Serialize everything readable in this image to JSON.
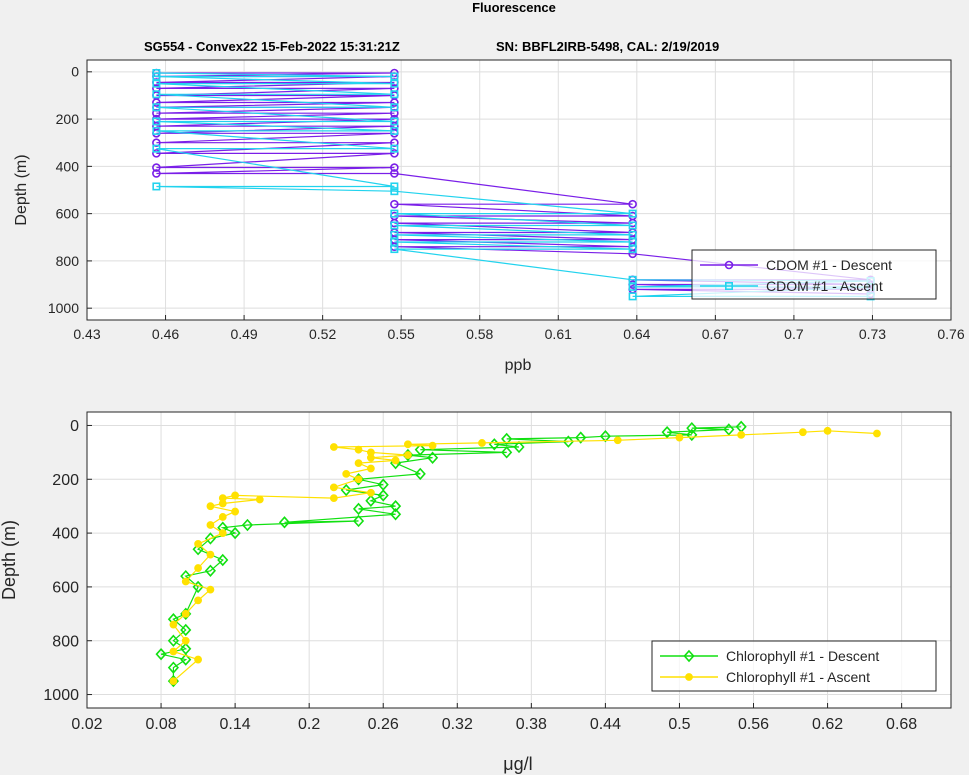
{
  "figure": {
    "title": "Fluorescence",
    "subtitle_left": "SG554 - Convex22 15-Feb-2022 15:31:21Z",
    "subtitle_right": "SN: BBFL2IRB-5498, CAL: 2/19/2019"
  },
  "colors": {
    "background": "#f0f0f0",
    "axes_bg": "#ffffff",
    "grid": "#dedede",
    "cdom_descent": "#7a1fe8",
    "cdom_ascent": "#22d3ee",
    "chl_descent": "#11e011",
    "chl_ascent": "#ffe100"
  },
  "chart_data": [
    {
      "type": "line",
      "ylabel": "Depth (m)",
      "xlabel": "ppb",
      "xlim": [
        0.43,
        0.76
      ],
      "ylim": [
        1050,
        -50
      ],
      "y_reversed": true,
      "xticks": [
        0.43,
        0.46,
        0.49,
        0.52,
        0.55,
        0.58,
        0.61,
        0.64,
        0.67,
        0.7,
        0.73,
        0.76
      ],
      "xtick_labels": [
        "0.43",
        "0.46",
        "0.49",
        "0.52",
        "0.55",
        "0.58",
        "0.61",
        "0.64",
        "0.67",
        "0.7",
        "0.73",
        "0.76"
      ],
      "yticks": [
        0,
        200,
        400,
        600,
        800,
        1000
      ],
      "ytick_labels": [
        "0",
        "200",
        "400",
        "600",
        "800",
        "1000"
      ],
      "grid": true,
      "legend_position": "bottom-right",
      "series": [
        {
          "name": "CDOM #1 - Descent",
          "marker": "circle",
          "color": "#7a1fe8",
          "x": [
            0.4565,
            0.5474,
            0.4565,
            0.5474,
            0.4565,
            0.5474,
            0.4565,
            0.5474,
            0.4565,
            0.5474,
            0.4565,
            0.5474,
            0.4565,
            0.5474,
            0.4565,
            0.5474,
            0.4565,
            0.5474,
            0.4565,
            0.5474,
            0.4565,
            0.5474,
            0.4565,
            0.5474,
            0.4565,
            0.5474,
            0.4565,
            0.5474,
            0.4565,
            0.5474,
            0.6384,
            0.5474,
            0.6384,
            0.5474,
            0.6384,
            0.5474,
            0.6384,
            0.5474,
            0.6384,
            0.5474,
            0.6384,
            0.5474,
            0.6384,
            0.7293,
            0.6384,
            0.7293,
            0.6384,
            0.7293,
            0.6384,
            0.7293
          ],
          "y": [
            5,
            5,
            20,
            20,
            45,
            45,
            70,
            70,
            100,
            100,
            130,
            130,
            150,
            150,
            175,
            175,
            200,
            200,
            230,
            230,
            260,
            260,
            300,
            300,
            345,
            345,
            405,
            405,
            430,
            430,
            560,
            560,
            610,
            610,
            640,
            640,
            680,
            680,
            710,
            710,
            740,
            740,
            770,
            880,
            880,
            900,
            900,
            920,
            920,
            940
          ]
        },
        {
          "name": "CDOM #1 - Ascent",
          "marker": "square",
          "color": "#22d3ee",
          "x": [
            0.7293,
            0.6384,
            0.7293,
            0.6384,
            0.7293,
            0.6384,
            0.5474,
            0.6384,
            0.5474,
            0.6384,
            0.5474,
            0.6384,
            0.5474,
            0.6384,
            0.5474,
            0.6384,
            0.5474,
            0.4565,
            0.5474,
            0.4565,
            0.5474,
            0.4565,
            0.5474,
            0.4565,
            0.5474,
            0.4565,
            0.5474,
            0.4565,
            0.5474,
            0.4565,
            0.5474,
            0.4565,
            0.5474,
            0.4565
          ],
          "y": [
            950,
            950,
            910,
            910,
            885,
            880,
            750,
            750,
            720,
            720,
            690,
            690,
            650,
            650,
            600,
            600,
            505,
            485,
            485,
            325,
            325,
            250,
            250,
            210,
            210,
            150,
            150,
            95,
            95,
            50,
            50,
            20,
            20,
            5
          ]
        }
      ]
    },
    {
      "type": "line",
      "ylabel": "Depth (m)",
      "xlabel": "μg/l",
      "xlim": [
        0.02,
        0.72
      ],
      "ylim": [
        1050,
        -50
      ],
      "y_reversed": true,
      "xticks": [
        0.02,
        0.08,
        0.14,
        0.2,
        0.26,
        0.32,
        0.38,
        0.44,
        0.5,
        0.56,
        0.62,
        0.68
      ],
      "xtick_labels": [
        "0.02",
        "0.08",
        "0.14",
        "0.2",
        "0.26",
        "0.32",
        "0.38",
        "0.44",
        "0.5",
        "0.56",
        "0.62",
        "0.68"
      ],
      "yticks": [
        0,
        200,
        400,
        600,
        800,
        1000
      ],
      "ytick_labels": [
        "0",
        "200",
        "400",
        "600",
        "800",
        "1000"
      ],
      "grid": true,
      "legend_position": "bottom-right",
      "series": [
        {
          "name": "Chlorophyll #1 - Descent",
          "marker": "diamond",
          "color": "#11e011",
          "x": [
            0.55,
            0.51,
            0.54,
            0.49,
            0.51,
            0.44,
            0.42,
            0.36,
            0.41,
            0.35,
            0.37,
            0.29,
            0.36,
            0.28,
            0.3,
            0.27,
            0.29,
            0.24,
            0.26,
            0.23,
            0.26,
            0.25,
            0.27,
            0.24,
            0.27,
            0.18,
            0.24,
            0.15,
            0.13,
            0.14,
            0.12,
            0.11,
            0.13,
            0.12,
            0.1,
            0.11,
            0.1,
            0.09,
            0.1,
            0.09,
            0.1,
            0.08,
            0.1,
            0.09,
            0.09
          ],
          "y": [
            5,
            10,
            15,
            25,
            35,
            40,
            45,
            50,
            60,
            70,
            80,
            90,
            100,
            110,
            120,
            140,
            180,
            200,
            220,
            240,
            260,
            280,
            300,
            310,
            330,
            360,
            355,
            370,
            380,
            400,
            420,
            460,
            500,
            540,
            560,
            600,
            700,
            720,
            760,
            800,
            830,
            850,
            870,
            900,
            950
          ]
        },
        {
          "name": "Chlorophyll #1 - Ascent",
          "marker": "circle-filled",
          "color": "#ffe100",
          "x": [
            0.09,
            0.11,
            0.09,
            0.1,
            0.09,
            0.1,
            0.11,
            0.12,
            0.1,
            0.11,
            0.12,
            0.11,
            0.13,
            0.12,
            0.13,
            0.14,
            0.12,
            0.13,
            0.16,
            0.13,
            0.14,
            0.22,
            0.25,
            0.22,
            0.24,
            0.23,
            0.25,
            0.24,
            0.27,
            0.25,
            0.28,
            0.25,
            0.24,
            0.22,
            0.3,
            0.28,
            0.34,
            0.45,
            0.5,
            0.55,
            0.6,
            0.62,
            0.66
          ],
          "y": [
            950,
            870,
            840,
            800,
            740,
            700,
            650,
            610,
            580,
            530,
            480,
            440,
            400,
            370,
            340,
            320,
            300,
            290,
            275,
            270,
            260,
            270,
            250,
            230,
            200,
            180,
            160,
            140,
            130,
            120,
            110,
            100,
            90,
            80,
            75,
            70,
            65,
            55,
            45,
            35,
            25,
            20,
            30
          ]
        }
      ]
    }
  ]
}
